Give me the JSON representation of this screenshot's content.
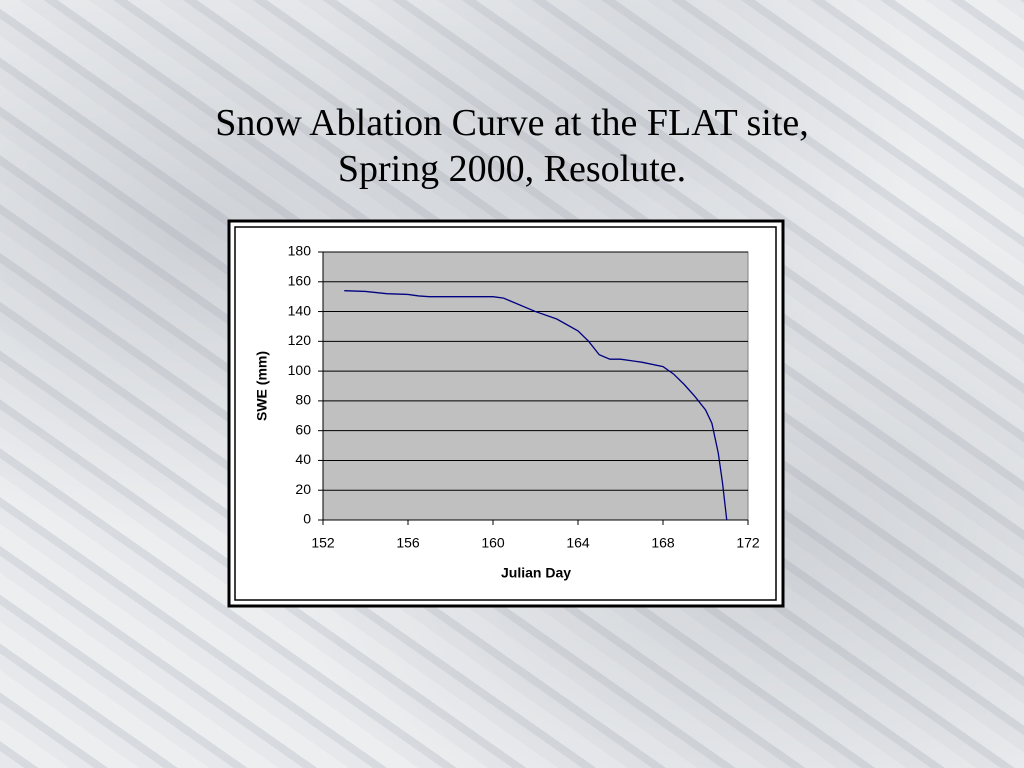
{
  "chart_data": {
    "type": "line",
    "title": "Snow Ablation Curve at the FLAT site, Spring 2000, Resolute.",
    "x_label": "Julian Day",
    "y_label": "SWE (mm)",
    "x": [
      153,
      154,
      155,
      156,
      156.5,
      157,
      158,
      159,
      160,
      160.5,
      161,
      162,
      163,
      164,
      164.5,
      165,
      165.5,
      166,
      167,
      168,
      168.5,
      169,
      169.5,
      170,
      170.3,
      170.6,
      170.8,
      171
    ],
    "values": [
      154,
      153.5,
      152,
      151.5,
      150.5,
      150,
      150,
      150,
      150,
      149,
      146,
      140,
      135,
      127,
      120,
      111,
      108,
      108,
      106,
      103,
      98,
      91,
      83,
      74,
      65,
      45,
      25,
      0
    ],
    "color": "#000080",
    "plot_background": "#c0c0c0",
    "grid": true,
    "xlim": [
      152,
      172
    ],
    "xticks": [
      152,
      156,
      160,
      164,
      168,
      172
    ],
    "ylim": [
      0,
      180
    ],
    "yticks": [
      0,
      20,
      40,
      60,
      80,
      100,
      120,
      140,
      160,
      180
    ]
  }
}
